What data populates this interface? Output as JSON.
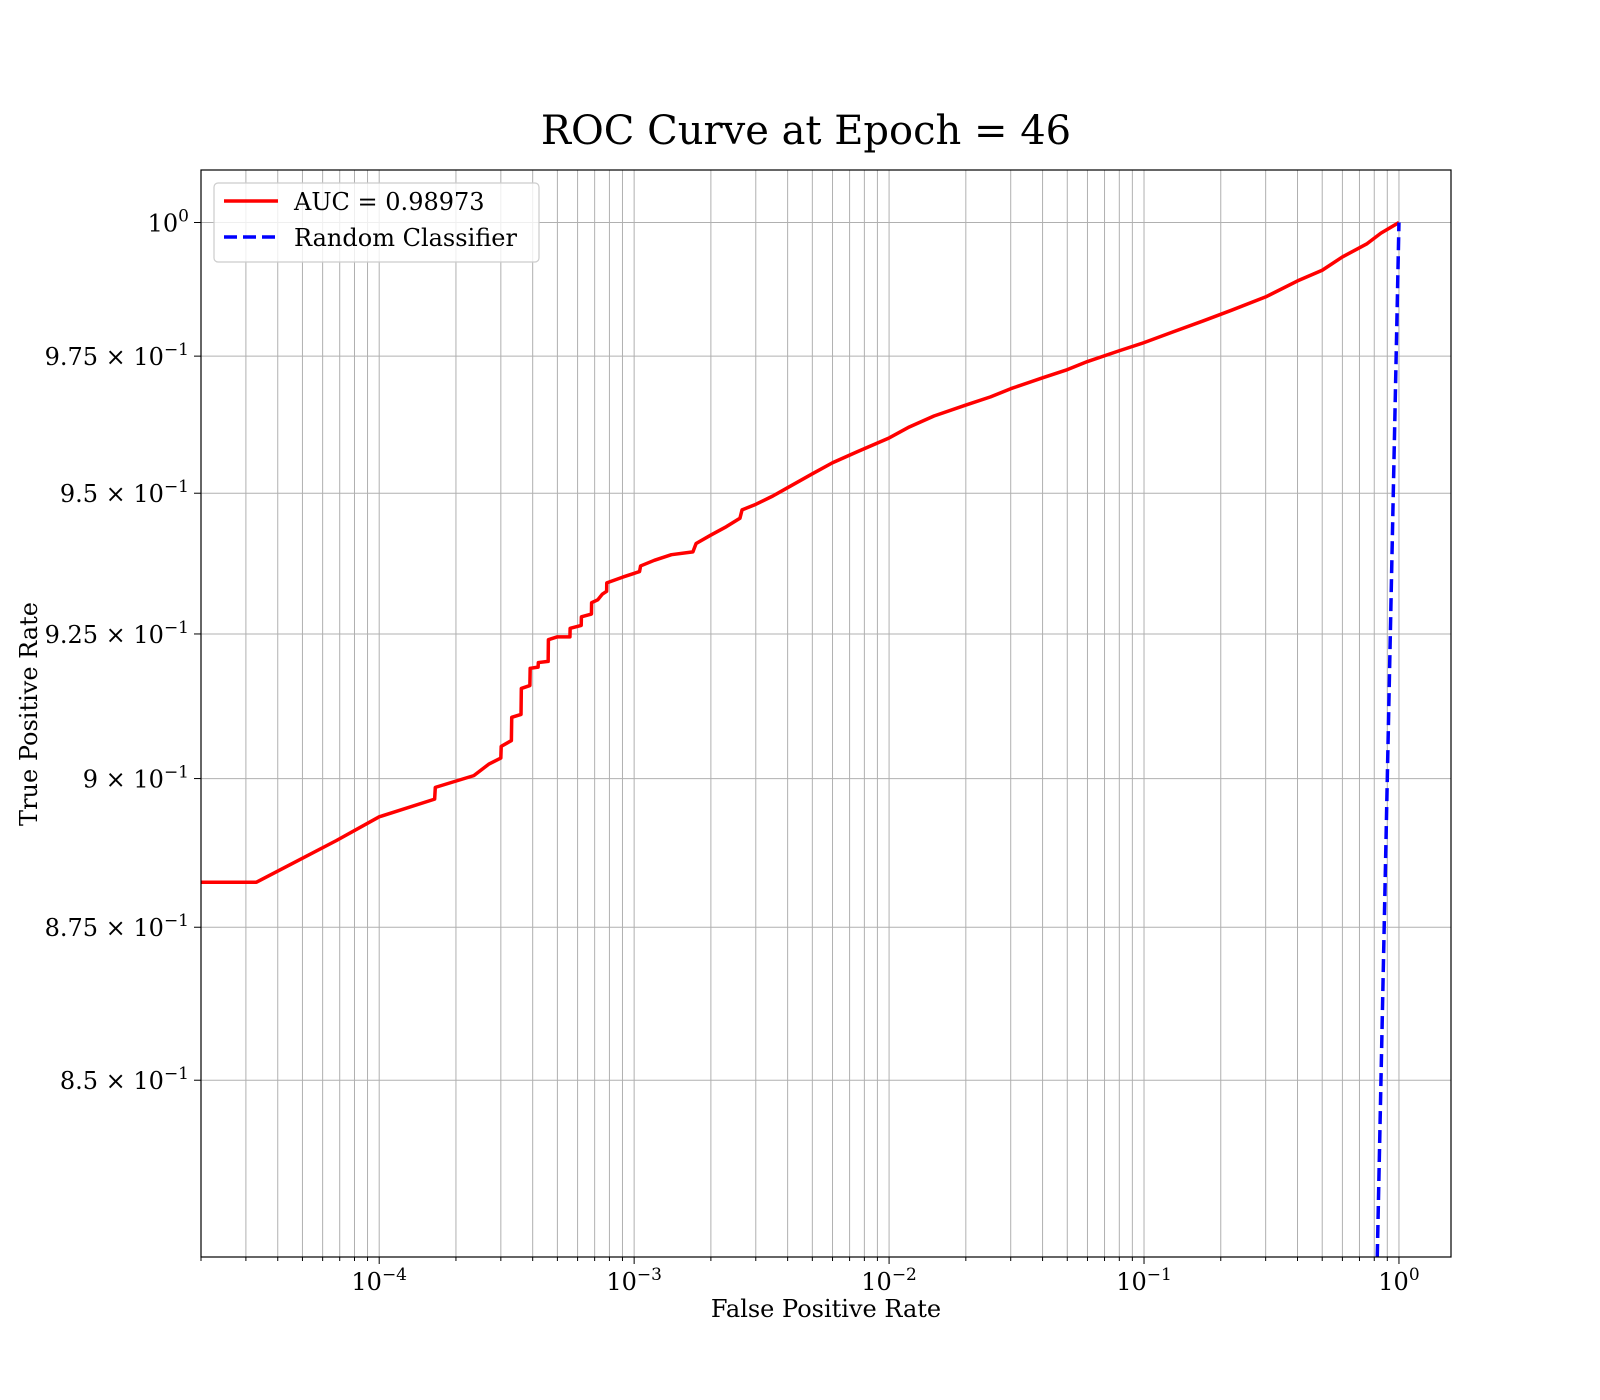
{
  "chart_data": {
    "type": "line",
    "title": "ROC Curve at Epoch = 46",
    "xlabel": "False Positive Rate",
    "ylabel": "True Positive Rate",
    "xscale": "log",
    "yscale": "log",
    "xlim": [
      2e-05,
      1.6
    ],
    "ylim": [
      0.822,
      1.01
    ],
    "grid": true,
    "legend_position": "top-left",
    "x_ticks": [
      {
        "value": 0.0001,
        "base": "10",
        "exp": "−4"
      },
      {
        "value": 0.001,
        "base": "10",
        "exp": "−3"
      },
      {
        "value": 0.01,
        "base": "10",
        "exp": "−2"
      },
      {
        "value": 0.1,
        "base": "10",
        "exp": "−1"
      },
      {
        "value": 1,
        "base": "10",
        "exp": "0"
      }
    ],
    "y_ticks": [
      {
        "value": 0.85,
        "base": "8.5 × 10",
        "exp": "−1"
      },
      {
        "value": 0.875,
        "base": "8.75 × 10",
        "exp": "−1"
      },
      {
        "value": 0.9,
        "base": "9 × 10",
        "exp": "−1"
      },
      {
        "value": 0.925,
        "base": "9.25 × 10",
        "exp": "−1"
      },
      {
        "value": 0.95,
        "base": "9.5 × 10",
        "exp": "−1"
      },
      {
        "value": 0.975,
        "base": "9.75 × 10",
        "exp": "−1"
      },
      {
        "value": 1.0,
        "base": "10",
        "exp": "0"
      }
    ],
    "series": [
      {
        "name": "AUC = 0.98973",
        "color": "#ff0000",
        "style": "solid",
        "points": [
          [
            2e-05,
            0.8825
          ],
          [
            3.3e-05,
            0.8825
          ],
          [
            4.5e-05,
            0.8855
          ],
          [
            6.8e-05,
            0.8895
          ],
          [
            0.0001,
            0.8935
          ],
          [
            0.000165,
            0.8965
          ],
          [
            0.000166,
            0.8985
          ],
          [
            0.000235,
            0.9005
          ],
          [
            0.00027,
            0.9025
          ],
          [
            0.0003,
            0.9035
          ],
          [
            0.000301,
            0.9055
          ],
          [
            0.00033,
            0.9065
          ],
          [
            0.000331,
            0.9105
          ],
          [
            0.00036,
            0.911
          ],
          [
            0.000361,
            0.9155
          ],
          [
            0.00039,
            0.916
          ],
          [
            0.000391,
            0.919
          ],
          [
            0.00042,
            0.9192
          ],
          [
            0.000421,
            0.92
          ],
          [
            0.00046,
            0.9202
          ],
          [
            0.000461,
            0.924
          ],
          [
            0.0005,
            0.9245
          ],
          [
            0.00056,
            0.9245
          ],
          [
            0.000561,
            0.926
          ],
          [
            0.00062,
            0.9265
          ],
          [
            0.000621,
            0.928
          ],
          [
            0.00068,
            0.9285
          ],
          [
            0.000681,
            0.9305
          ],
          [
            0.00072,
            0.931
          ],
          [
            0.00075,
            0.932
          ],
          [
            0.00078,
            0.9325
          ],
          [
            0.000781,
            0.934
          ],
          [
            0.0009,
            0.935
          ],
          [
            0.00105,
            0.936
          ],
          [
            0.00106,
            0.937
          ],
          [
            0.0012,
            0.938
          ],
          [
            0.0014,
            0.939
          ],
          [
            0.0017,
            0.9395
          ],
          [
            0.00175,
            0.941
          ],
          [
            0.002,
            0.9425
          ],
          [
            0.0023,
            0.944
          ],
          [
            0.0026,
            0.9455
          ],
          [
            0.00265,
            0.947
          ],
          [
            0.003,
            0.948
          ],
          [
            0.0035,
            0.9495
          ],
          [
            0.004,
            0.951
          ],
          [
            0.005,
            0.9535
          ],
          [
            0.006,
            0.9555
          ],
          [
            0.0075,
            0.9575
          ],
          [
            0.01,
            0.96
          ],
          [
            0.012,
            0.962
          ],
          [
            0.015,
            0.964
          ],
          [
            0.02,
            0.966
          ],
          [
            0.025,
            0.9675
          ],
          [
            0.03,
            0.969
          ],
          [
            0.04,
            0.971
          ],
          [
            0.05,
            0.9725
          ],
          [
            0.06,
            0.974
          ],
          [
            0.08,
            0.976
          ],
          [
            0.1,
            0.9775
          ],
          [
            0.13,
            0.9795
          ],
          [
            0.17,
            0.9815
          ],
          [
            0.22,
            0.9835
          ],
          [
            0.3,
            0.986
          ],
          [
            0.4,
            0.989
          ],
          [
            0.5,
            0.991
          ],
          [
            0.6,
            0.9935
          ],
          [
            0.75,
            0.996
          ],
          [
            0.85,
            0.998
          ],
          [
            1.0,
            1.0
          ]
        ]
      },
      {
        "name": "Random Classifier",
        "color": "#0000ff",
        "style": "dashed",
        "points": [
          [
            0.822,
            0.822
          ],
          [
            1.0,
            1.0
          ]
        ]
      }
    ]
  }
}
